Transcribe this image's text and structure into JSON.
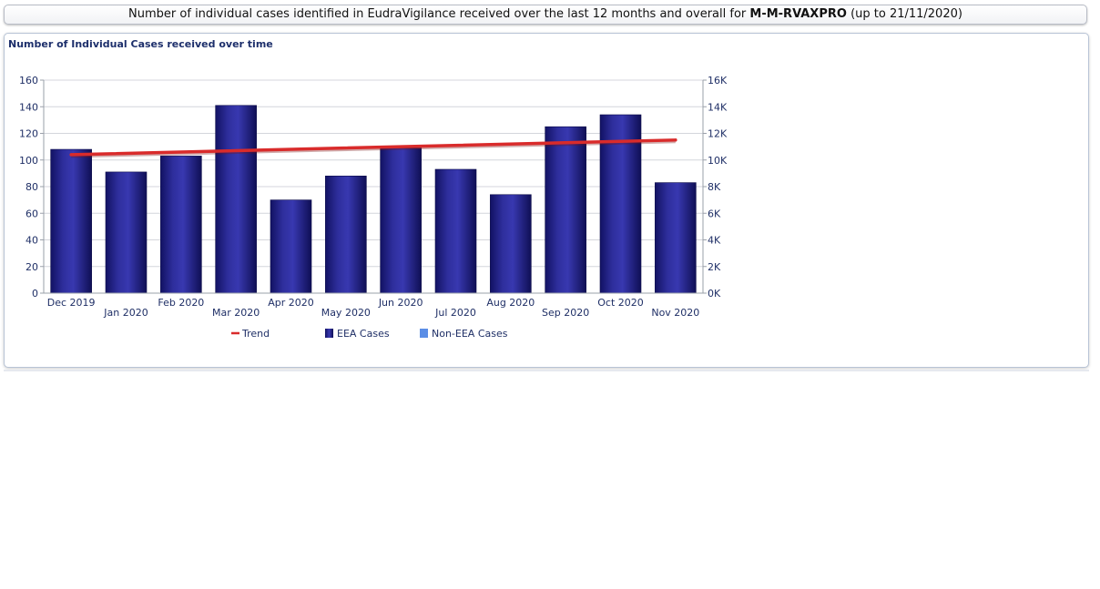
{
  "header": {
    "prefix": "Number of individual cases identified in EudraVigilance received over the last 12 months and overall for",
    "product": "M-M-RVAXPRO",
    "suffix": "(up to 21/11/2020)"
  },
  "panel": {
    "title": "Number of Individual Cases received over time"
  },
  "chart_data": {
    "type": "bar",
    "categories": [
      "Dec 2019",
      "Jan 2020",
      "Feb 2020",
      "Mar 2020",
      "Apr 2020",
      "May 2020",
      "Jun 2020",
      "Jul 2020",
      "Aug 2020",
      "Sep 2020",
      "Oct 2020",
      "Nov 2020"
    ],
    "series": [
      {
        "name": "EEA Cases",
        "values": [
          108,
          91,
          103,
          141,
          70,
          88,
          109,
          93,
          74,
          125,
          134,
          83
        ]
      },
      {
        "name": "Non-EEA Cases",
        "values": [
          0,
          0,
          0,
          0,
          0,
          0,
          0,
          0,
          0,
          0,
          0,
          0
        ]
      }
    ],
    "trend": {
      "name": "Trend",
      "start": 104,
      "end": 115
    },
    "ylim": [
      0,
      160
    ],
    "yticks": [
      "0",
      "20",
      "40",
      "60",
      "80",
      "100",
      "120",
      "140",
      "160"
    ],
    "y2ticks": [
      "0K",
      "2K",
      "4K",
      "6K",
      "8K",
      "10K",
      "12K",
      "14K",
      "16K"
    ],
    "legend_position": "bottom",
    "grid": true,
    "colors": {
      "eea": "#1c1c7a",
      "non_eea": "#5b8ee6",
      "trend": "#d92b2b"
    }
  },
  "legend": [
    {
      "label": "Trend"
    },
    {
      "label": "EEA Cases"
    },
    {
      "label": "Non-EEA Cases"
    }
  ]
}
